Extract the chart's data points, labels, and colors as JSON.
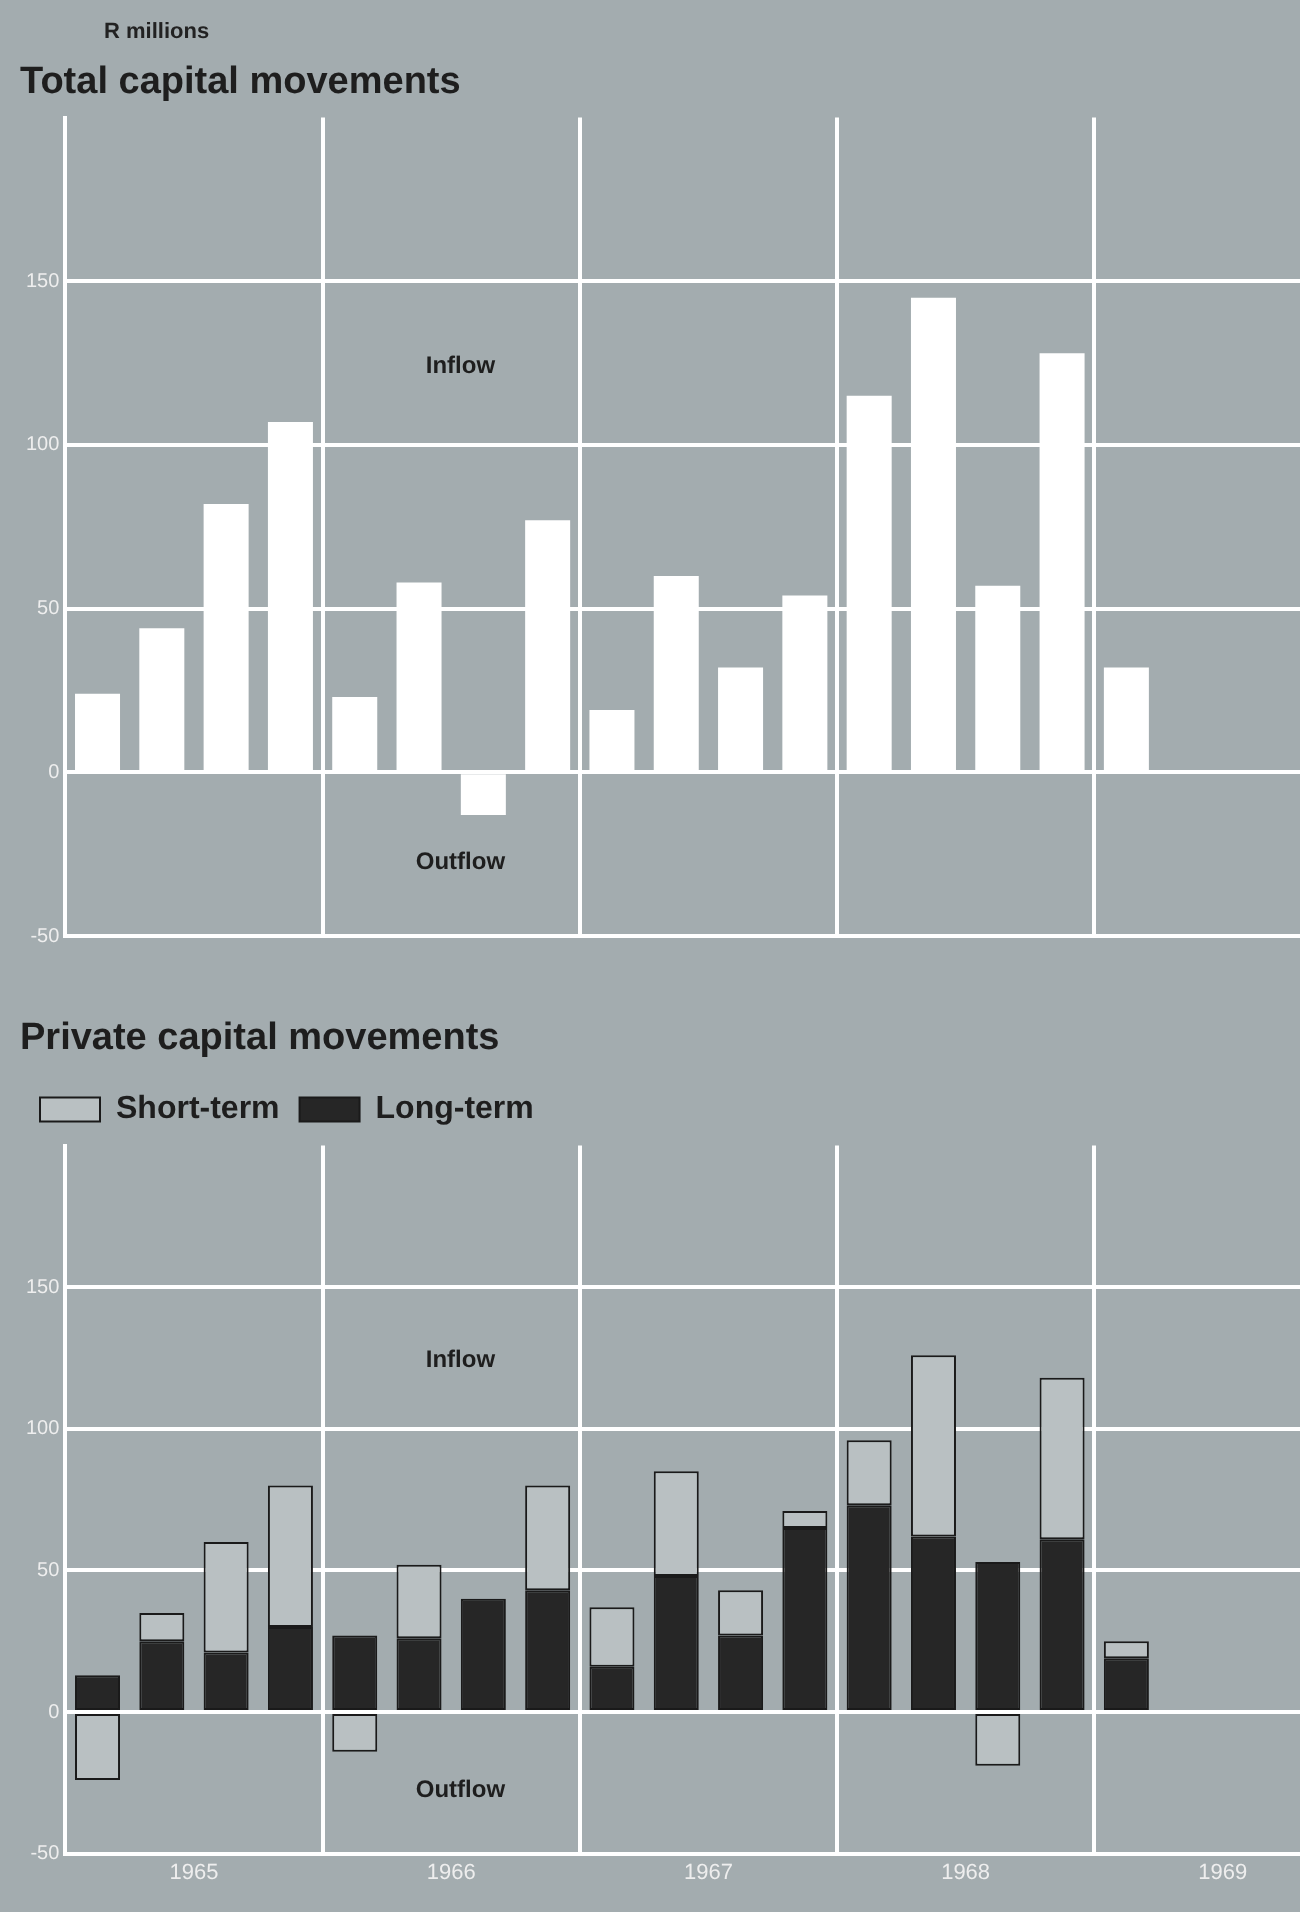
{
  "chart_data": [
    {
      "type": "bar",
      "title": "Total capital movements",
      "ylabel": "R millions",
      "annotations": [
        "Inflow",
        "Outflow"
      ],
      "x": [
        1965.125,
        1965.375,
        1965.625,
        1965.875,
        1966.125,
        1966.375,
        1966.625,
        1966.875,
        1967.125,
        1967.375,
        1967.625,
        1967.875,
        1968.125,
        1968.375,
        1968.625,
        1968.875,
        1969.125
      ],
      "values": [
        24,
        44,
        82,
        107,
        23,
        58,
        -13,
        77,
        19,
        60,
        32,
        54,
        115,
        145,
        57,
        128,
        32
      ],
      "color": "#ffffff",
      "xlim": [
        1965,
        1969.8
      ],
      "xticks": [
        {
          "value": 1965,
          "label": null
        },
        {
          "value": 1966,
          "label": null
        },
        {
          "value": 1967,
          "label": null
        },
        {
          "value": 1968,
          "label": null
        },
        {
          "value": 1969,
          "label": null
        }
      ],
      "ylim": [
        -50,
        200
      ],
      "yticks": [
        -50,
        0,
        50,
        100,
        150
      ],
      "grid": true,
      "tick_labels": "y"
    },
    {
      "type": "bar",
      "title": "Private capital movements",
      "annotations": [
        "Inflow",
        "Outflow"
      ],
      "stacked": true,
      "legend": "top left",
      "x": [
        1965.125,
        1965.375,
        1965.625,
        1965.875,
        1966.125,
        1966.375,
        1966.625,
        1966.875,
        1967.125,
        1967.375,
        1967.625,
        1967.875,
        1968.125,
        1968.375,
        1968.625,
        1968.875,
        1969.125
      ],
      "series": [
        {
          "name": "Long-term",
          "color": "#262626",
          "values": [
            13,
            25,
            21,
            30,
            27,
            26,
            40,
            43,
            16,
            48,
            27,
            65,
            73,
            62,
            53,
            61,
            19
          ]
        },
        {
          "name": "Short-term",
          "color": "#b9c0c2",
          "values": [
            -24,
            10,
            39,
            50,
            -14,
            26,
            0,
            37,
            21,
            37,
            16,
            6,
            23,
            64,
            -19,
            57,
            6
          ]
        }
      ],
      "xlim": [
        1965,
        1969.8
      ],
      "xticks": [
        {
          "value": 1965,
          "label": null
        },
        {
          "value": 1965.5,
          "label": "1965"
        },
        {
          "value": 1966,
          "label": null
        },
        {
          "value": 1966.5,
          "label": "1966"
        },
        {
          "value": 1967,
          "label": null
        },
        {
          "value": 1967.5,
          "label": "1967"
        },
        {
          "value": 1968,
          "label": null
        },
        {
          "value": 1968.5,
          "label": "1968"
        },
        {
          "value": 1969,
          "label": null
        },
        {
          "value": 1969.5,
          "label": "1969"
        }
      ],
      "ylim": [
        -50,
        200
      ],
      "yticks": [
        -50,
        0,
        50,
        100,
        150
      ],
      "grid": true
    }
  ]
}
